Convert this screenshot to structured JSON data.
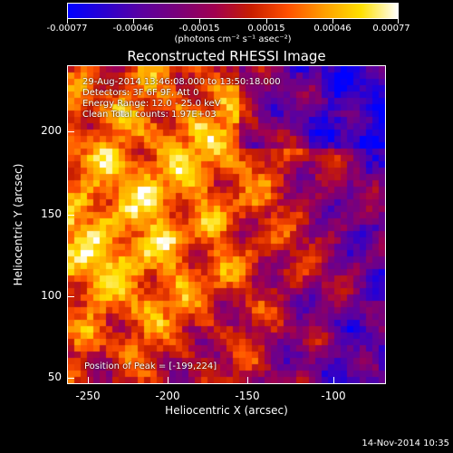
{
  "colorbar": {
    "labels": [
      "-0.00077",
      "-0.00046",
      "-0.00015",
      "0.00015",
      "0.00046",
      "0.00077"
    ],
    "units": "(photons cm⁻² s⁻¹ asec⁻²)",
    "colors": [
      "#0000ff",
      "#2a00d0",
      "#5b00a0",
      "#7a007a",
      "#a00050",
      "#c81e00",
      "#ff5000",
      "#ff9f00",
      "#ffe000",
      "#ffffff"
    ]
  },
  "title": "Reconstructed RHESSI Image",
  "info": {
    "line1": "29-Aug-2014 13:46:08.000 to 13:50:18.000",
    "line2": "Detectors: 3F 6F 9F, Att 0",
    "line3": "Energy Range: 12.0 - 25.0 keV",
    "line4": "Clean   Total counts: 1.97E+03",
    "peak": "Position of Peak = [-199,224]"
  },
  "axes": {
    "xlabel": "Heliocentric X (arcsec)",
    "ylabel": "Heliocentric Y (arcsec)",
    "xticks": [
      "-250",
      "-200",
      "-150",
      "-100"
    ],
    "yticks": [
      "200",
      "150",
      "100",
      "50"
    ],
    "xlim": [
      -264,
      -64
    ],
    "ylim": [
      46,
      246
    ]
  },
  "timestamp": "14-Nov-2014 10:35"
}
